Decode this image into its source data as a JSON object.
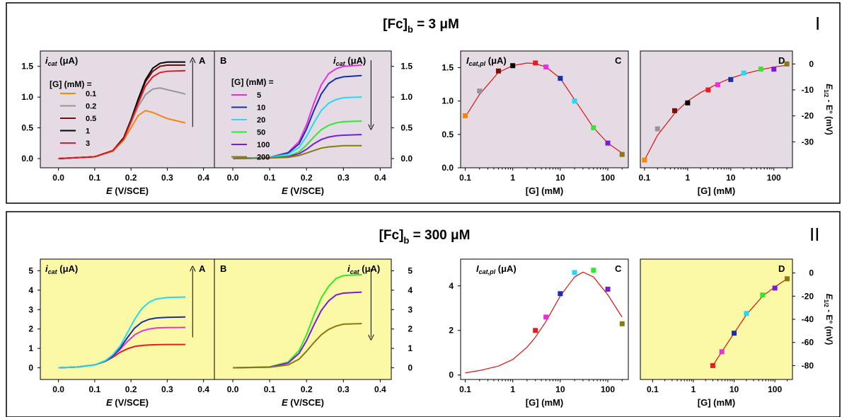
{
  "rows": [
    {
      "roman": "I",
      "title_main": "[Fc]",
      "title_sub": "b",
      "title_rest": " = 3 μM"
    },
    {
      "roman": "II",
      "title_main": "[Fc]",
      "title_sub": "b",
      "title_rest": " = 300 μM"
    }
  ],
  "labels": {
    "icat": "i",
    "icat_sub": "cat",
    "icat_unit": " (μA)",
    "icatpl": "I",
    "icatpl_sub": "cat,pl",
    "icatpl_unit": " (μA)",
    "xE": "E",
    "xE_unit": " (V/SCE)",
    "xG": "[G] (mM)",
    "yD_a": "E",
    "yD_sub": "1/2",
    "yD_b": " - E°  (mV)",
    "legend_title": "[G] (mM) ="
  },
  "colors": {
    "row1_bg": "#e4dbe5",
    "row2_bg": "#fbf8a6",
    "fit": "#d9120f",
    "frame": "#000000"
  },
  "chart_data": [
    {
      "id": "I-A",
      "type": "line",
      "panel_letter": "A",
      "xlim": [
        -0.05,
        0.43
      ],
      "ylim": [
        -0.15,
        1.75
      ],
      "x_ticks": [
        0.0,
        0.1,
        0.2,
        0.3,
        0.4
      ],
      "x_tick_labels": [
        "0.0",
        "0.1",
        "0.2",
        "0.3",
        "0.4"
      ],
      "y_ticks": [
        0,
        0.5,
        1.0,
        1.5
      ],
      "y_tick_labels": [
        "0.0",
        "0.5",
        "1.0",
        "1.5"
      ],
      "arrow": "up",
      "legend_title": "[G] (mM) =",
      "series": [
        {
          "name": "0.1",
          "color": "#f7840f",
          "x": [
            0,
            0.1,
            0.15,
            0.18,
            0.2,
            0.22,
            0.24,
            0.26,
            0.28,
            0.3,
            0.35
          ],
          "y": [
            0,
            0.03,
            0.12,
            0.3,
            0.5,
            0.7,
            0.78,
            0.75,
            0.7,
            0.65,
            0.58
          ]
        },
        {
          "name": "0.2",
          "color": "#9b939b",
          "x": [
            0,
            0.1,
            0.15,
            0.18,
            0.2,
            0.22,
            0.24,
            0.26,
            0.28,
            0.3,
            0.35
          ],
          "y": [
            0,
            0.03,
            0.13,
            0.32,
            0.58,
            0.85,
            1.04,
            1.13,
            1.15,
            1.12,
            1.05
          ]
        },
        {
          "name": "0.5",
          "color": "#7d0d0d",
          "x": [
            0,
            0.1,
            0.15,
            0.18,
            0.2,
            0.22,
            0.24,
            0.26,
            0.28,
            0.3,
            0.35
          ],
          "y": [
            0,
            0.03,
            0.13,
            0.33,
            0.62,
            0.95,
            1.25,
            1.42,
            1.5,
            1.52,
            1.52
          ]
        },
        {
          "name": "1",
          "color": "#000000",
          "x": [
            0,
            0.1,
            0.15,
            0.18,
            0.2,
            0.22,
            0.24,
            0.26,
            0.28,
            0.3,
            0.35
          ],
          "y": [
            0,
            0.03,
            0.13,
            0.34,
            0.63,
            0.97,
            1.28,
            1.47,
            1.55,
            1.57,
            1.57
          ]
        },
        {
          "name": "3",
          "color": "#e51c23",
          "x": [
            0,
            0.1,
            0.15,
            0.18,
            0.2,
            0.22,
            0.24,
            0.26,
            0.28,
            0.3,
            0.35
          ],
          "y": [
            0,
            0.03,
            0.13,
            0.32,
            0.6,
            0.9,
            1.18,
            1.33,
            1.4,
            1.42,
            1.43
          ]
        }
      ]
    },
    {
      "id": "I-B",
      "type": "line",
      "panel_letter": "B",
      "xlim": [
        -0.05,
        0.43
      ],
      "ylim": [
        -0.15,
        1.75
      ],
      "x_ticks": [
        0.0,
        0.1,
        0.2,
        0.3,
        0.4
      ],
      "x_tick_labels": [
        "0.0",
        "0.1",
        "0.2",
        "0.3",
        "0.4"
      ],
      "y_ticks": [
        0,
        0.5,
        1.0,
        1.5
      ],
      "y_tick_labels": [
        "0.0",
        "0.5",
        "1.0",
        "1.5"
      ],
      "arrow": "down",
      "legend_title": "[G] (mM) =",
      "series": [
        {
          "name": "5",
          "color": "#ea2fdb",
          "x": [
            0,
            0.1,
            0.15,
            0.18,
            0.2,
            0.22,
            0.24,
            0.26,
            0.28,
            0.3,
            0.35
          ],
          "y": [
            0,
            0.02,
            0.1,
            0.28,
            0.55,
            0.9,
            1.2,
            1.38,
            1.46,
            1.5,
            1.52
          ]
        },
        {
          "name": "10",
          "color": "#1a2fa8",
          "x": [
            0,
            0.1,
            0.15,
            0.18,
            0.2,
            0.22,
            0.24,
            0.26,
            0.28,
            0.3,
            0.35
          ],
          "y": [
            0,
            0.02,
            0.09,
            0.24,
            0.48,
            0.78,
            1.05,
            1.22,
            1.3,
            1.33,
            1.35
          ]
        },
        {
          "name": "20",
          "color": "#24d9f2",
          "x": [
            0,
            0.1,
            0.15,
            0.18,
            0.2,
            0.22,
            0.24,
            0.26,
            0.28,
            0.3,
            0.35
          ],
          "y": [
            0,
            0.02,
            0.07,
            0.18,
            0.36,
            0.58,
            0.78,
            0.9,
            0.96,
            0.99,
            1.0
          ]
        },
        {
          "name": "50",
          "color": "#2fe82f",
          "x": [
            0,
            0.1,
            0.15,
            0.18,
            0.2,
            0.22,
            0.24,
            0.26,
            0.28,
            0.3,
            0.35
          ],
          "y": [
            0,
            0.01,
            0.04,
            0.11,
            0.22,
            0.35,
            0.47,
            0.54,
            0.58,
            0.6,
            0.61
          ]
        },
        {
          "name": "100",
          "color": "#7a1dd6",
          "x": [
            0,
            0.1,
            0.15,
            0.18,
            0.2,
            0.22,
            0.24,
            0.26,
            0.28,
            0.3,
            0.35
          ],
          "y": [
            0,
            0.01,
            0.03,
            0.08,
            0.15,
            0.24,
            0.31,
            0.35,
            0.37,
            0.38,
            0.39
          ]
        },
        {
          "name": "200",
          "color": "#8a7a12",
          "x": [
            0,
            0.1,
            0.15,
            0.18,
            0.2,
            0.22,
            0.24,
            0.26,
            0.28,
            0.3,
            0.35
          ],
          "y": [
            0,
            0.01,
            0.02,
            0.05,
            0.09,
            0.13,
            0.17,
            0.19,
            0.2,
            0.21,
            0.21
          ]
        }
      ]
    },
    {
      "id": "I-C",
      "type": "scatter",
      "panel_letter": "C",
      "x_scale": "log",
      "xlim": [
        0.08,
        270
      ],
      "ylim": [
        0,
        1.75
      ],
      "x_ticks": [
        0.1,
        1,
        10,
        100
      ],
      "x_tick_labels": [
        "0.1",
        "1",
        "10",
        "100"
      ],
      "y_ticks": [
        0,
        0.5,
        1.0,
        1.5
      ],
      "y_tick_labels": [
        "0.0",
        "0.5",
        "1.0",
        "1.5"
      ],
      "points": [
        {
          "x": 0.1,
          "y": 0.78,
          "color": "#f7840f"
        },
        {
          "x": 0.2,
          "y": 1.15,
          "color": "#9b939b"
        },
        {
          "x": 0.5,
          "y": 1.45,
          "color": "#7d0d0d"
        },
        {
          "x": 1,
          "y": 1.53,
          "color": "#000000"
        },
        {
          "x": 3,
          "y": 1.57,
          "color": "#e51c23"
        },
        {
          "x": 5,
          "y": 1.51,
          "color": "#ea2fdb"
        },
        {
          "x": 10,
          "y": 1.34,
          "color": "#1a2fa8"
        },
        {
          "x": 20,
          "y": 1.0,
          "color": "#24d9f2"
        },
        {
          "x": 50,
          "y": 0.6,
          "color": "#2fe82f"
        },
        {
          "x": 100,
          "y": 0.37,
          "color": "#7a1dd6"
        },
        {
          "x": 200,
          "y": 0.2,
          "color": "#8a7a12"
        }
      ],
      "fit": {
        "x": [
          0.1,
          0.2,
          0.5,
          1,
          2,
          3,
          5,
          10,
          20,
          50,
          100,
          200
        ],
        "y": [
          0.76,
          1.1,
          1.43,
          1.53,
          1.57,
          1.56,
          1.51,
          1.34,
          1.02,
          0.6,
          0.37,
          0.22
        ]
      }
    },
    {
      "id": "I-D",
      "type": "scatter",
      "panel_letter": "D",
      "x_scale": "log",
      "xlim": [
        0.08,
        270
      ],
      "ylim": [
        -40,
        5
      ],
      "x_ticks": [
        0.1,
        1,
        10,
        100
      ],
      "x_tick_labels": [
        "0.1",
        "1",
        "10",
        "100"
      ],
      "y_ticks": [
        0,
        -10,
        -20,
        -30
      ],
      "y_tick_labels": [
        "0",
        "-10",
        "-20",
        "-30"
      ],
      "points": [
        {
          "x": 0.1,
          "y": -37,
          "color": "#f7840f"
        },
        {
          "x": 0.2,
          "y": -25,
          "color": "#9b939b"
        },
        {
          "x": 0.5,
          "y": -18,
          "color": "#7d0d0d"
        },
        {
          "x": 1,
          "y": -15,
          "color": "#000000"
        },
        {
          "x": 3,
          "y": -10,
          "color": "#e51c23"
        },
        {
          "x": 5,
          "y": -8,
          "color": "#ea2fdb"
        },
        {
          "x": 10,
          "y": -6,
          "color": "#1a2fa8"
        },
        {
          "x": 20,
          "y": -3.5,
          "color": "#24d9f2"
        },
        {
          "x": 50,
          "y": -2,
          "color": "#2fe82f"
        },
        {
          "x": 100,
          "y": -2,
          "color": "#7a1dd6"
        },
        {
          "x": 200,
          "y": 0,
          "color": "#8a7a12"
        }
      ],
      "fit": {
        "x": [
          0.1,
          0.2,
          0.5,
          1,
          2,
          5,
          10,
          20,
          50,
          100,
          200
        ],
        "y": [
          -37,
          -27.5,
          -19,
          -14.3,
          -11,
          -7.6,
          -5.5,
          -3.9,
          -2.2,
          -1.2,
          -0.5
        ]
      }
    },
    {
      "id": "II-A",
      "type": "line",
      "panel_letter": "A",
      "xlim": [
        -0.05,
        0.43
      ],
      "ylim": [
        -0.6,
        5.6
      ],
      "x_ticks": [
        0.0,
        0.1,
        0.2,
        0.3,
        0.4
      ],
      "x_tick_labels": [
        "0.0",
        "0.1",
        "0.2",
        "0.3",
        "0.4"
      ],
      "y_ticks": [
        0,
        1,
        2,
        3,
        4,
        5
      ],
      "y_tick_labels": [
        "0",
        "1",
        "2",
        "3",
        "4",
        "5"
      ],
      "arrow": "up",
      "series": [
        {
          "name": "3",
          "color": "#e51c23",
          "x": [
            0,
            0.05,
            0.1,
            0.13,
            0.15,
            0.17,
            0.19,
            0.21,
            0.23,
            0.25,
            0.27,
            0.3,
            0.35
          ],
          "y": [
            0,
            0.04,
            0.15,
            0.35,
            0.55,
            0.8,
            0.98,
            1.1,
            1.15,
            1.18,
            1.19,
            1.2,
            1.2
          ]
        },
        {
          "name": "5",
          "color": "#ea2fdb",
          "x": [
            0,
            0.05,
            0.1,
            0.13,
            0.15,
            0.17,
            0.19,
            0.21,
            0.23,
            0.25,
            0.27,
            0.3,
            0.35
          ],
          "y": [
            0,
            0.04,
            0.15,
            0.35,
            0.6,
            0.95,
            1.35,
            1.7,
            1.9,
            2.0,
            2.05,
            2.07,
            2.08
          ]
        },
        {
          "name": "10",
          "color": "#1a2fa8",
          "x": [
            0,
            0.05,
            0.1,
            0.13,
            0.15,
            0.17,
            0.19,
            0.21,
            0.23,
            0.25,
            0.27,
            0.3,
            0.35
          ],
          "y": [
            0,
            0.04,
            0.15,
            0.35,
            0.62,
            1.02,
            1.55,
            2.05,
            2.35,
            2.5,
            2.57,
            2.6,
            2.62
          ]
        },
        {
          "name": "20",
          "color": "#24d9f2",
          "x": [
            0,
            0.05,
            0.1,
            0.13,
            0.15,
            0.17,
            0.19,
            0.21,
            0.23,
            0.25,
            0.27,
            0.3,
            0.35
          ],
          "y": [
            0,
            0.04,
            0.15,
            0.38,
            0.68,
            1.12,
            1.8,
            2.5,
            3.05,
            3.38,
            3.55,
            3.62,
            3.65
          ]
        }
      ]
    },
    {
      "id": "II-B",
      "type": "line",
      "panel_letter": "B",
      "xlim": [
        -0.05,
        0.43
      ],
      "ylim": [
        -0.6,
        5.6
      ],
      "x_ticks": [
        0.0,
        0.1,
        0.2,
        0.3,
        0.4
      ],
      "x_tick_labels": [
        "0.0",
        "0.1",
        "0.2",
        "0.3",
        "0.4"
      ],
      "y_ticks": [
        0,
        1,
        2,
        3,
        4,
        5
      ],
      "y_tick_labels": [
        "0",
        "1",
        "2",
        "3",
        "4",
        "5"
      ],
      "arrow": "down",
      "series": [
        {
          "name": "50",
          "color": "#2fe82f",
          "x": [
            0,
            0.1,
            0.15,
            0.18,
            0.2,
            0.22,
            0.24,
            0.26,
            0.28,
            0.3,
            0.35
          ],
          "y": [
            0,
            0.05,
            0.3,
            0.9,
            1.7,
            2.7,
            3.6,
            4.2,
            4.6,
            4.75,
            4.8
          ]
        },
        {
          "name": "100",
          "color": "#7a1dd6",
          "x": [
            0,
            0.1,
            0.15,
            0.18,
            0.2,
            0.22,
            0.24,
            0.26,
            0.28,
            0.3,
            0.35
          ],
          "y": [
            0,
            0.04,
            0.25,
            0.75,
            1.4,
            2.2,
            2.95,
            3.45,
            3.75,
            3.85,
            3.9
          ]
        },
        {
          "name": "200",
          "color": "#8a7a12",
          "x": [
            0,
            0.1,
            0.15,
            0.18,
            0.2,
            0.22,
            0.24,
            0.26,
            0.28,
            0.3,
            0.35
          ],
          "y": [
            0,
            0.03,
            0.15,
            0.45,
            0.85,
            1.3,
            1.7,
            1.98,
            2.15,
            2.25,
            2.28
          ]
        }
      ]
    },
    {
      "id": "II-C",
      "type": "scatter",
      "panel_letter": "C",
      "x_scale": "log",
      "xlim": [
        0.08,
        270
      ],
      "ylim": [
        -0.2,
        5.2
      ],
      "x_ticks": [
        0.1,
        1,
        10,
        100
      ],
      "x_tick_labels": [
        "0.1",
        "1",
        "10",
        "100"
      ],
      "y_ticks": [
        0,
        2,
        4
      ],
      "y_tick_labels": [
        "0",
        "2",
        "4"
      ],
      "points": [
        {
          "x": 3,
          "y": 2.0,
          "color": "#e51c23"
        },
        {
          "x": 5,
          "y": 2.6,
          "color": "#ea2fdb"
        },
        {
          "x": 10,
          "y": 3.65,
          "color": "#1a2fa8"
        },
        {
          "x": 20,
          "y": 4.6,
          "color": "#24d9f2"
        },
        {
          "x": 50,
          "y": 4.7,
          "color": "#2fe82f"
        },
        {
          "x": 100,
          "y": 3.85,
          "color": "#7a1dd6"
        },
        {
          "x": 200,
          "y": 2.3,
          "color": "#8a7a12"
        }
      ],
      "fit": {
        "x": [
          0.1,
          0.2,
          0.5,
          1,
          2,
          3,
          5,
          10,
          20,
          30,
          50,
          100,
          200
        ],
        "y": [
          0.1,
          0.2,
          0.4,
          0.7,
          1.25,
          1.7,
          2.4,
          3.55,
          4.4,
          4.62,
          4.4,
          3.6,
          2.6
        ]
      }
    },
    {
      "id": "II-D",
      "type": "scatter",
      "panel_letter": "D",
      "x_scale": "log",
      "xlim": [
        0.05,
        270
      ],
      "ylim": [
        -92,
        12
      ],
      "x_ticks": [
        0.1,
        1,
        10,
        100
      ],
      "x_tick_labels": [
        "0.1",
        "1",
        "10",
        "100"
      ],
      "y_ticks": [
        0,
        -20,
        -40,
        -60,
        -80
      ],
      "y_tick_labels": [
        "0",
        "-20",
        "-40",
        "-60",
        "-80"
      ],
      "points": [
        {
          "x": 3,
          "y": -80,
          "color": "#e51c23"
        },
        {
          "x": 5,
          "y": -68,
          "color": "#ea2fdb"
        },
        {
          "x": 10,
          "y": -52,
          "color": "#1a2fa8"
        },
        {
          "x": 20,
          "y": -35,
          "color": "#24d9f2"
        },
        {
          "x": 50,
          "y": -19,
          "color": "#2fe82f"
        },
        {
          "x": 100,
          "y": -13,
          "color": "#7a1dd6"
        },
        {
          "x": 200,
          "y": -5,
          "color": "#8a7a12"
        }
      ],
      "fit": {
        "x": [
          3,
          5,
          10,
          20,
          50,
          100,
          200
        ],
        "y": [
          -80,
          -68,
          -52,
          -36,
          -20,
          -12,
          -5
        ]
      }
    }
  ]
}
